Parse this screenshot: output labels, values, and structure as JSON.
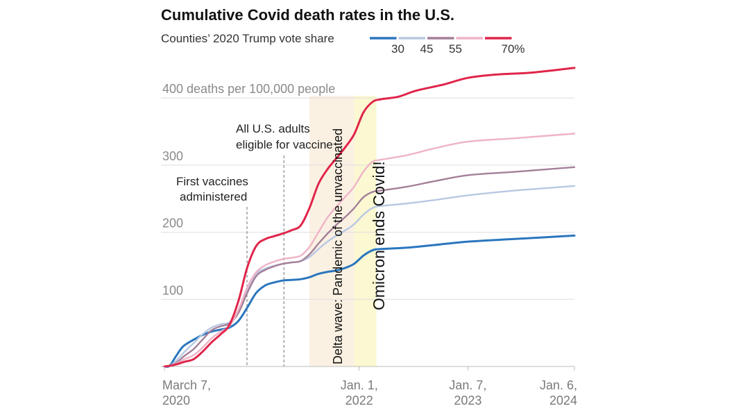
{
  "title": "Cumulative Covid death rates in the U.S.",
  "subtitle": "Counties’ 2020 Trump vote share",
  "legend": [
    {
      "label": "30",
      "color": "#2a76be"
    },
    {
      "label": "45",
      "color": "#b8c8e2"
    },
    {
      "label": "55",
      "color": "#a47f99"
    },
    {
      "label": "",
      "color": "#eeb3c7"
    },
    {
      "label": "70%",
      "color": "#e0254a"
    }
  ],
  "annotations": {
    "first_vaccines": [
      "First vaccines",
      "administered"
    ],
    "all_adults": [
      "All U.S. adults",
      "eligible for vaccine"
    ],
    "delta": "Delta wave: Pandemic of the unvaccinated",
    "omicron": "Omicron ends Covid!"
  },
  "chart_data": {
    "type": "line",
    "title": "Cumulative Covid death rates in the U.S.",
    "subtitle": "Counties’ 2020 Trump vote share",
    "ylabel": "400 deaths per 100,000 people",
    "ylim": [
      0,
      450
    ],
    "xlim": [
      "2020-03-07",
      "2024-01-06"
    ],
    "y_ticks": [
      {
        "value": 100,
        "label": "100"
      },
      {
        "value": 200,
        "label": "200"
      },
      {
        "value": 300,
        "label": "300"
      },
      {
        "value": 400,
        "label": "400 deaths per 100,000 people"
      }
    ],
    "x_ticks": [
      {
        "date": "2020-03-07",
        "label": [
          "March 7,",
          "2020"
        ]
      },
      {
        "date": "2022-01-01",
        "label": [
          "Jan. 1,",
          "2022"
        ]
      },
      {
        "date": "2023-01-07",
        "label": [
          "Jan. 7,",
          "2023"
        ]
      },
      {
        "date": "2024-01-06",
        "label": [
          "Jan. 6,",
          "2024"
        ]
      }
    ],
    "markers": [
      {
        "date": "2020-12-14",
        "name": "first-vaccines"
      },
      {
        "date": "2021-04-19",
        "name": "all-adults-eligible"
      }
    ],
    "bands": [
      {
        "name": "delta-wave",
        "start": "2021-07-15",
        "end": "2021-12-15",
        "color": "#fbf1e3"
      },
      {
        "name": "omicron",
        "start": "2021-12-15",
        "end": "2022-03-01",
        "color": "#fbf8d2"
      }
    ],
    "grid": true,
    "series": [
      {
        "name": "30",
        "color": "#2a76be",
        "width": 3,
        "points": [
          [
            "2020-03-07",
            0
          ],
          [
            "2020-03-25",
            1
          ],
          [
            "2020-04-15",
            15
          ],
          [
            "2020-05-10",
            30
          ],
          [
            "2020-06-15",
            40
          ],
          [
            "2020-07-15",
            47
          ],
          [
            "2020-08-15",
            52
          ],
          [
            "2020-09-15",
            55
          ],
          [
            "2020-10-15",
            58
          ],
          [
            "2020-11-15",
            68
          ],
          [
            "2020-12-15",
            88
          ],
          [
            "2021-01-15",
            110
          ],
          [
            "2021-02-15",
            121
          ],
          [
            "2021-03-15",
            125
          ],
          [
            "2021-04-15",
            128
          ],
          [
            "2021-05-15",
            129
          ],
          [
            "2021-06-15",
            130
          ],
          [
            "2021-07-15",
            133
          ],
          [
            "2021-08-15",
            138
          ],
          [
            "2021-09-15",
            141
          ],
          [
            "2021-10-15",
            143
          ],
          [
            "2021-11-15",
            147
          ],
          [
            "2021-12-15",
            153
          ],
          [
            "2022-01-15",
            165
          ],
          [
            "2022-02-15",
            173
          ],
          [
            "2022-03-15",
            175
          ],
          [
            "2022-06-15",
            177
          ],
          [
            "2022-09-15",
            181
          ],
          [
            "2023-01-07",
            186
          ],
          [
            "2023-06-15",
            190
          ],
          [
            "2024-01-06",
            195
          ]
        ]
      },
      {
        "name": "45",
        "color": "#b8c8e2",
        "width": 2.4,
        "points": [
          [
            "2020-03-07",
            0
          ],
          [
            "2020-03-25",
            1
          ],
          [
            "2020-04-15",
            8
          ],
          [
            "2020-05-15",
            22
          ],
          [
            "2020-06-15",
            35
          ],
          [
            "2020-07-15",
            48
          ],
          [
            "2020-08-15",
            58
          ],
          [
            "2020-09-15",
            63
          ],
          [
            "2020-10-15",
            66
          ],
          [
            "2020-11-15",
            82
          ],
          [
            "2020-12-15",
            112
          ],
          [
            "2021-01-15",
            138
          ],
          [
            "2021-02-15",
            146
          ],
          [
            "2021-03-15",
            150
          ],
          [
            "2021-04-15",
            153
          ],
          [
            "2021-05-15",
            155
          ],
          [
            "2021-06-15",
            157
          ],
          [
            "2021-07-15",
            163
          ],
          [
            "2021-08-15",
            175
          ],
          [
            "2021-09-15",
            186
          ],
          [
            "2021-10-15",
            195
          ],
          [
            "2021-11-15",
            203
          ],
          [
            "2021-12-15",
            212
          ],
          [
            "2022-01-15",
            226
          ],
          [
            "2022-02-15",
            236
          ],
          [
            "2022-03-15",
            239
          ],
          [
            "2022-06-15",
            243
          ],
          [
            "2022-09-15",
            248
          ],
          [
            "2023-01-07",
            255
          ],
          [
            "2023-06-15",
            262
          ],
          [
            "2024-01-06",
            269
          ]
        ]
      },
      {
        "name": "55",
        "color": "#a47f99",
        "width": 2.4,
        "points": [
          [
            "2020-03-07",
            0
          ],
          [
            "2020-03-25",
            1
          ],
          [
            "2020-04-15",
            5
          ],
          [
            "2020-05-15",
            16
          ],
          [
            "2020-06-15",
            26
          ],
          [
            "2020-07-15",
            40
          ],
          [
            "2020-08-15",
            54
          ],
          [
            "2020-09-15",
            60
          ],
          [
            "2020-10-15",
            64
          ],
          [
            "2020-11-15",
            80
          ],
          [
            "2020-12-15",
            110
          ],
          [
            "2021-01-15",
            135
          ],
          [
            "2021-02-15",
            144
          ],
          [
            "2021-03-15",
            149
          ],
          [
            "2021-04-15",
            153
          ],
          [
            "2021-05-15",
            155
          ],
          [
            "2021-06-15",
            157
          ],
          [
            "2021-07-15",
            167
          ],
          [
            "2021-08-15",
            183
          ],
          [
            "2021-09-15",
            198
          ],
          [
            "2021-10-15",
            211
          ],
          [
            "2021-11-15",
            223
          ],
          [
            "2021-12-15",
            236
          ],
          [
            "2022-01-15",
            252
          ],
          [
            "2022-02-15",
            260
          ],
          [
            "2022-03-15",
            262
          ],
          [
            "2022-06-15",
            268
          ],
          [
            "2022-09-15",
            276
          ],
          [
            "2023-01-07",
            285
          ],
          [
            "2023-06-15",
            290
          ],
          [
            "2024-01-06",
            297
          ]
        ]
      },
      {
        "name": "",
        "color": "#eeb3c7",
        "width": 2.4,
        "points": [
          [
            "2020-03-07",
            0
          ],
          [
            "2020-03-25",
            1
          ],
          [
            "2020-04-15",
            4
          ],
          [
            "2020-05-15",
            11
          ],
          [
            "2020-06-15",
            17
          ],
          [
            "2020-07-15",
            28
          ],
          [
            "2020-08-15",
            42
          ],
          [
            "2020-09-15",
            52
          ],
          [
            "2020-10-15",
            60
          ],
          [
            "2020-11-15",
            85
          ],
          [
            "2020-12-15",
            118
          ],
          [
            "2021-01-15",
            141
          ],
          [
            "2021-02-15",
            151
          ],
          [
            "2021-03-15",
            156
          ],
          [
            "2021-04-15",
            160
          ],
          [
            "2021-05-15",
            162
          ],
          [
            "2021-06-15",
            165
          ],
          [
            "2021-07-15",
            178
          ],
          [
            "2021-08-15",
            200
          ],
          [
            "2021-09-15",
            222
          ],
          [
            "2021-10-15",
            238
          ],
          [
            "2021-11-15",
            253
          ],
          [
            "2021-12-15",
            268
          ],
          [
            "2022-01-15",
            290
          ],
          [
            "2022-02-15",
            305
          ],
          [
            "2022-03-15",
            308
          ],
          [
            "2022-06-15",
            315
          ],
          [
            "2022-09-15",
            325
          ],
          [
            "2023-01-07",
            335
          ],
          [
            "2023-06-15",
            340
          ],
          [
            "2024-01-06",
            347
          ]
        ]
      },
      {
        "name": "70%",
        "color": "#e0254a",
        "width": 3,
        "points": [
          [
            "2020-03-07",
            0
          ],
          [
            "2020-03-25",
            1
          ],
          [
            "2020-04-15",
            3
          ],
          [
            "2020-05-15",
            7
          ],
          [
            "2020-06-15",
            11
          ],
          [
            "2020-07-15",
            22
          ],
          [
            "2020-08-15",
            36
          ],
          [
            "2020-09-15",
            48
          ],
          [
            "2020-10-15",
            62
          ],
          [
            "2020-11-15",
            98
          ],
          [
            "2020-12-15",
            148
          ],
          [
            "2021-01-15",
            180
          ],
          [
            "2021-02-15",
            190
          ],
          [
            "2021-03-15",
            194
          ],
          [
            "2021-04-15",
            198
          ],
          [
            "2021-05-15",
            203
          ],
          [
            "2021-06-15",
            210
          ],
          [
            "2021-07-15",
            236
          ],
          [
            "2021-08-15",
            272
          ],
          [
            "2021-09-15",
            294
          ],
          [
            "2021-10-15",
            310
          ],
          [
            "2021-11-15",
            327
          ],
          [
            "2021-12-15",
            346
          ],
          [
            "2022-01-15",
            378
          ],
          [
            "2022-02-15",
            394
          ],
          [
            "2022-03-15",
            398
          ],
          [
            "2022-05-15",
            402
          ],
          [
            "2022-07-15",
            411
          ],
          [
            "2022-10-15",
            420
          ],
          [
            "2023-01-07",
            430
          ],
          [
            "2023-04-15",
            435
          ],
          [
            "2023-08-15",
            438
          ],
          [
            "2024-01-06",
            445
          ]
        ]
      }
    ]
  }
}
